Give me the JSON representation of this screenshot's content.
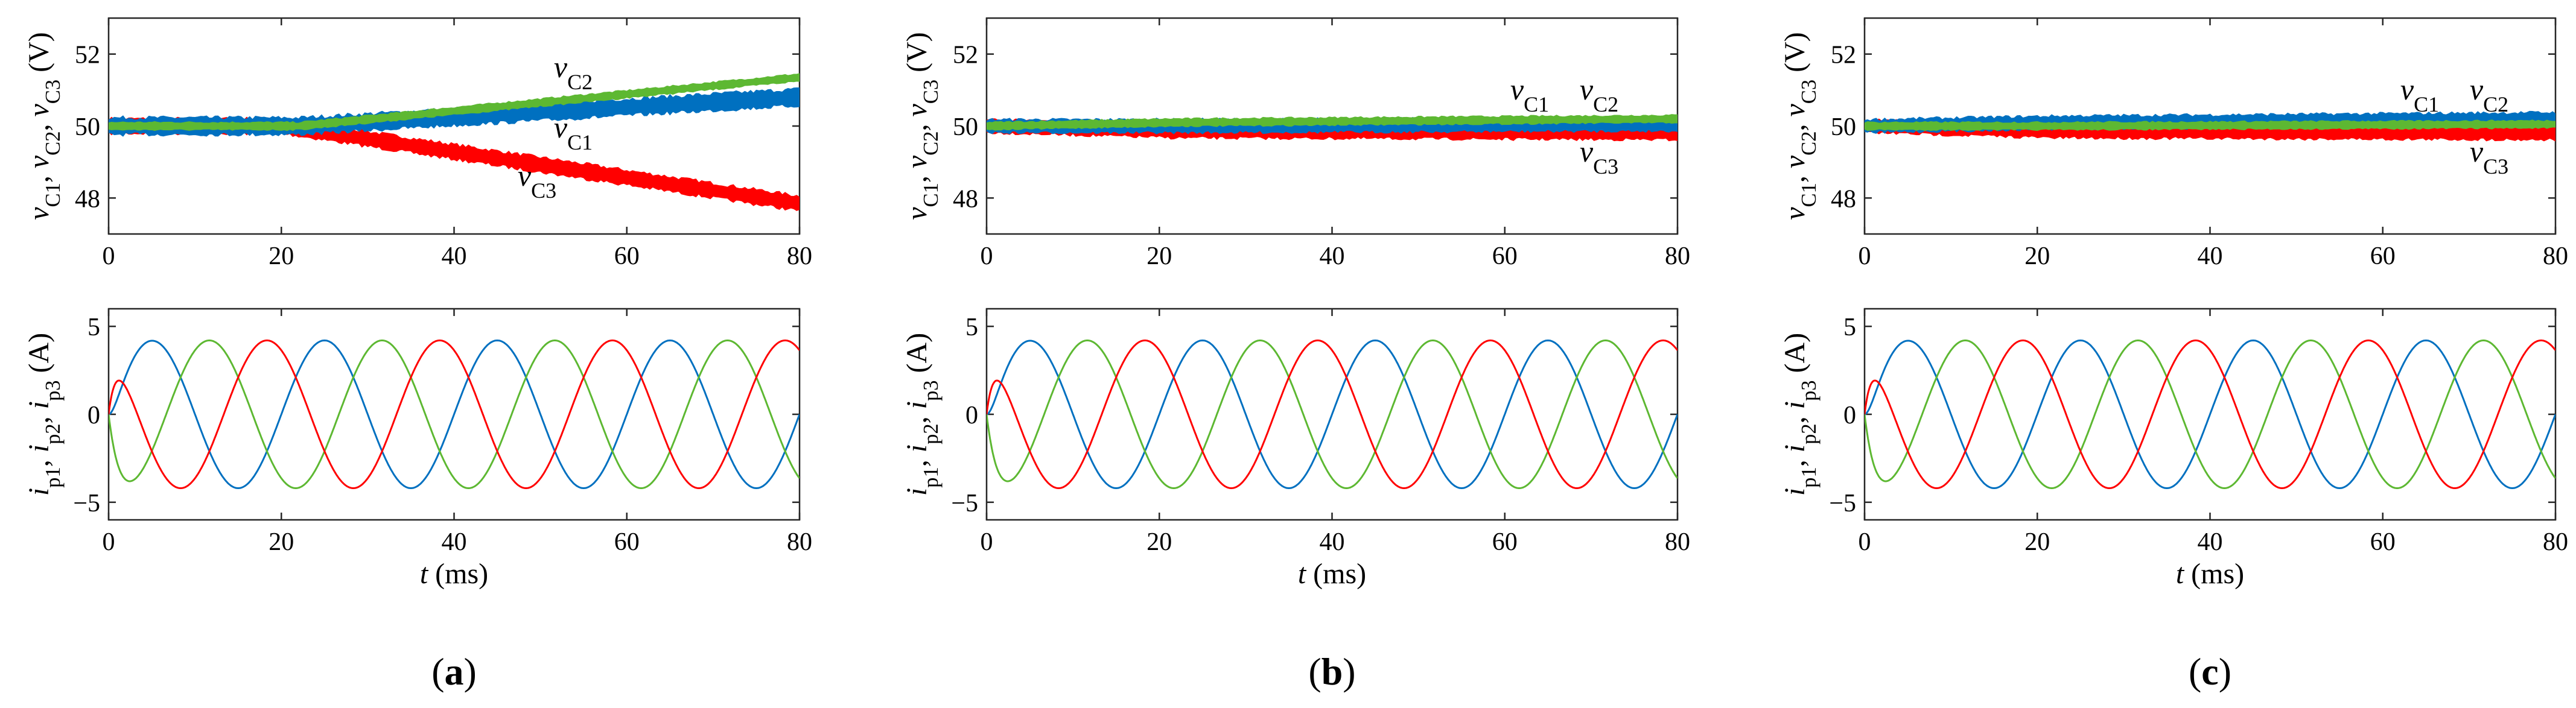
{
  "chart_data": [
    {
      "id": "a",
      "caption": "(a)",
      "voltage_panel": {
        "type": "line",
        "ylabel": "vC1, vC2, vC3 (V)",
        "xlim": [
          0,
          80
        ],
        "ylim": [
          47,
          53
        ],
        "xticks": [
          "0",
          "20",
          "40",
          "60",
          "80"
        ],
        "yticks": [
          "48",
          "50",
          "52"
        ],
        "series": [
          {
            "name": "vC1",
            "color": "#0070C0",
            "x": [
              0,
              22,
              80
            ],
            "y": [
              50,
              50,
              50.8
            ],
            "thickness": 0.45
          },
          {
            "name": "vC2",
            "color": "#5DB832",
            "x": [
              0,
              22,
              80
            ],
            "y": [
              50,
              50,
              51.35
            ],
            "thickness": 0.2
          },
          {
            "name": "vC3",
            "color": "#FF0000",
            "x": [
              0,
              20,
              80
            ],
            "y": [
              50,
              50,
              47.85
            ],
            "thickness": 0.4
          }
        ],
        "labels": [
          {
            "text": "v",
            "sub": "C2",
            "series": "vC2"
          },
          {
            "text": "v",
            "sub": "C1",
            "series": "vC1"
          },
          {
            "text": "v",
            "sub": "C3",
            "series": "vC3"
          }
        ]
      },
      "current_panel": {
        "type": "line",
        "ylabel": "ip1, ip2, ip3 (A)",
        "xlabel": "t (ms)",
        "xlim": [
          0,
          80
        ],
        "ylim": [
          -6,
          6
        ],
        "xticks": [
          "0",
          "20",
          "40",
          "60",
          "80"
        ],
        "yticks": [
          "-5",
          "0",
          "5"
        ],
        "amplitude": 4.2,
        "period_ms": 20,
        "series": [
          {
            "name": "ip1",
            "color": "#0070C0",
            "phase_deg": 0
          },
          {
            "name": "ip2",
            "color": "#5DB832",
            "phase_deg": -120
          },
          {
            "name": "ip3",
            "color": "#FF0000",
            "phase_deg": 120
          }
        ]
      }
    },
    {
      "id": "b",
      "caption": "(b)",
      "voltage_panel": {
        "type": "line",
        "ylabel": "vC1, vC2, vC3 (V)",
        "xlim": [
          0,
          80
        ],
        "ylim": [
          47,
          53
        ],
        "xticks": [
          "0",
          "20",
          "40",
          "60",
          "80"
        ],
        "yticks": [
          "48",
          "50",
          "52"
        ],
        "series": [
          {
            "name": "vC1",
            "color": "#0070C0",
            "x": [
              0,
              22,
              80
            ],
            "y": [
              50,
              50,
              50.05
            ],
            "thickness": 0.35
          },
          {
            "name": "vC2",
            "color": "#5DB832",
            "x": [
              0,
              22,
              80
            ],
            "y": [
              50,
              50.1,
              50.2
            ],
            "thickness": 0.2
          },
          {
            "name": "vC3",
            "color": "#FF0000",
            "x": [
              0,
              22,
              80
            ],
            "y": [
              50,
              49.85,
              49.8
            ],
            "thickness": 0.35
          }
        ],
        "labels": [
          {
            "text": "v",
            "sub": "C1",
            "series": "vC1"
          },
          {
            "text": "v",
            "sub": "C2",
            "series": "vC2"
          },
          {
            "text": "v",
            "sub": "C3",
            "series": "vC3"
          }
        ]
      },
      "current_panel": {
        "type": "line",
        "ylabel": "ip1, ip2, ip3 (A)",
        "xlabel": "t (ms)",
        "xlim": [
          0,
          80
        ],
        "ylim": [
          -6,
          6
        ],
        "xticks": [
          "0",
          "20",
          "40",
          "60",
          "80"
        ],
        "yticks": [
          "-5",
          "0",
          "5"
        ],
        "amplitude": 4.2,
        "period_ms": 20,
        "series": [
          {
            "name": "ip1",
            "color": "#0070C0",
            "phase_deg": 0
          },
          {
            "name": "ip2",
            "color": "#5DB832",
            "phase_deg": -120
          },
          {
            "name": "ip3",
            "color": "#FF0000",
            "phase_deg": 120
          }
        ]
      }
    },
    {
      "id": "c",
      "caption": "(c)",
      "voltage_panel": {
        "type": "line",
        "ylabel": "vC1, vC2, vC3 (V)",
        "xlim": [
          0,
          80
        ],
        "ylim": [
          47,
          53
        ],
        "xticks": [
          "0",
          "20",
          "40",
          "60",
          "80"
        ],
        "yticks": [
          "48",
          "50",
          "52"
        ],
        "series": [
          {
            "name": "vC1",
            "color": "#0070C0",
            "x": [
              0,
              22,
              80
            ],
            "y": [
              50,
              50.1,
              50.2
            ],
            "thickness": 0.35
          },
          {
            "name": "vC2",
            "color": "#5DB832",
            "x": [
              0,
              22,
              80
            ],
            "y": [
              50,
              50,
              50.05
            ],
            "thickness": 0.2
          },
          {
            "name": "vC3",
            "color": "#FF0000",
            "x": [
              0,
              22,
              80
            ],
            "y": [
              50,
              49.85,
              49.8
            ],
            "thickness": 0.35
          }
        ],
        "labels": [
          {
            "text": "v",
            "sub": "C1",
            "series": "vC1"
          },
          {
            "text": "v",
            "sub": "C2",
            "series": "vC2"
          },
          {
            "text": "v",
            "sub": "C3",
            "series": "vC3"
          }
        ]
      },
      "current_panel": {
        "type": "line",
        "ylabel": "ip1, ip2, ip3 (A)",
        "xlabel": "t (ms)",
        "xlim": [
          0,
          80
        ],
        "ylim": [
          -6,
          6
        ],
        "xticks": [
          "0",
          "20",
          "40",
          "60",
          "80"
        ],
        "yticks": [
          "-5",
          "0",
          "5"
        ],
        "amplitude": 4.2,
        "period_ms": 20,
        "series": [
          {
            "name": "ip1",
            "color": "#0070C0",
            "phase_deg": 0
          },
          {
            "name": "ip2",
            "color": "#5DB832",
            "phase_deg": -120
          },
          {
            "name": "ip3",
            "color": "#FF0000",
            "phase_deg": 120
          }
        ]
      }
    }
  ]
}
